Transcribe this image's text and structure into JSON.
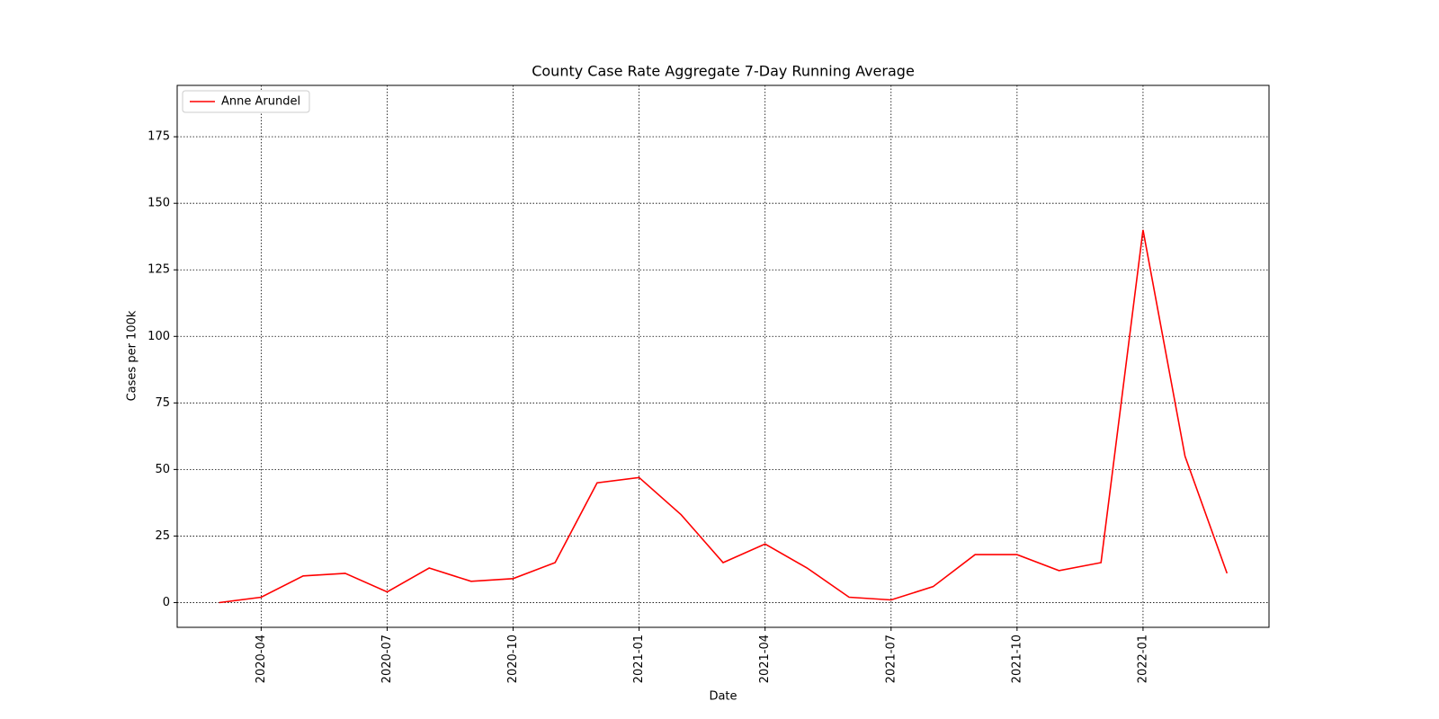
{
  "chart_data": {
    "type": "line",
    "title": "County Case Rate Aggregate 7-Day Running Average",
    "x_label": "Date",
    "y_label": "Cases per 100k",
    "x": [
      "2020-03",
      "2020-04",
      "2020-05",
      "2020-06",
      "2020-07",
      "2020-08",
      "2020-09",
      "2020-10",
      "2020-11",
      "2020-12",
      "2021-01",
      "2021-02",
      "2021-03",
      "2021-04",
      "2021-05",
      "2021-06",
      "2021-07",
      "2021-08",
      "2021-09",
      "2021-10",
      "2021-11",
      "2021-12",
      "2022-01",
      "2022-02",
      "2022-03"
    ],
    "series": [
      {
        "name": "Anne Arundel",
        "color": "#ff0000",
        "values": [
          0,
          2,
          10,
          11,
          4,
          13,
          8,
          9,
          15,
          45,
          47,
          33,
          15,
          22,
          13,
          2,
          1,
          6,
          18,
          18,
          12,
          15,
          140,
          55,
          11
        ]
      }
    ],
    "xlim": [
      "2020-02",
      "2022-04"
    ],
    "xticks": [
      "2020-04",
      "2020-07",
      "2020-10",
      "2021-01",
      "2021-04",
      "2021-07",
      "2021-10",
      "2022-01"
    ],
    "ylim": [
      -9.3,
      194.3
    ],
    "yticks": [
      0,
      25,
      50,
      75,
      100,
      125,
      150,
      175
    ],
    "grid": true,
    "legend": "upper left"
  }
}
